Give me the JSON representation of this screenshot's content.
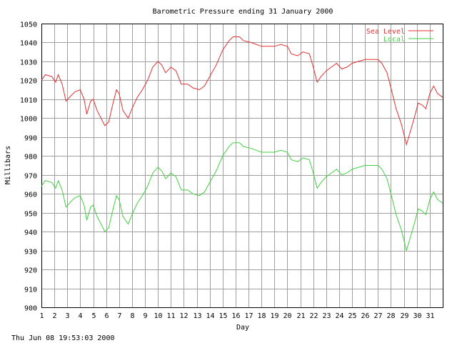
{
  "chart_data": {
    "type": "line",
    "title": "Barometric Pressure ending 31 January 2000",
    "x_label": "Day",
    "y_label": "Millibars",
    "footer": "Thu Jun 08 19:53:03 2000",
    "grid": true,
    "legend": "top-right",
    "xlim": [
      1,
      32
    ],
    "xticks": [
      1,
      2,
      3,
      4,
      5,
      6,
      7,
      8,
      9,
      10,
      11,
      12,
      13,
      14,
      15,
      16,
      17,
      18,
      19,
      20,
      21,
      22,
      23,
      24,
      25,
      26,
      27,
      28,
      29,
      30,
      31
    ],
    "ylim": [
      900,
      1050
    ],
    "yticks": [
      900,
      910,
      920,
      930,
      940,
      950,
      960,
      970,
      980,
      990,
      1000,
      1010,
      1020,
      1030,
      1040,
      1050
    ],
    "x": [
      1,
      1.3,
      1.8,
      2.1,
      2.3,
      2.6,
      2.9,
      3.3,
      3.6,
      4,
      4.3,
      4.5,
      4.8,
      5,
      5.3,
      5.6,
      5.9,
      6.2,
      6.5,
      6.8,
      7,
      7.3,
      7.7,
      8,
      8.4,
      8.8,
      9.2,
      9.6,
      10,
      10.3,
      10.6,
      11,
      11.4,
      11.8,
      12.3,
      12.7,
      13.2,
      13.6,
      14,
      14.5,
      15,
      15.5,
      15.8,
      16.3,
      16.6,
      17.2,
      17.6,
      18,
      18.5,
      19,
      19.5,
      20,
      20.3,
      20.8,
      21.2,
      21.7,
      22,
      22.3,
      22.6,
      23,
      23.4,
      23.8,
      24.2,
      24.6,
      25,
      25.5,
      26,
      26.5,
      27,
      27.3,
      27.7,
      28,
      28.4,
      28.8,
      29.2,
      29.5,
      29.8,
      30.1,
      30.4,
      30.7,
      31,
      31.3,
      31.6,
      32
    ],
    "series": [
      {
        "name": "Sea Level",
        "color": "#e03030",
        "values": [
          1020,
          1023,
          1022,
          1019,
          1023,
          1018,
          1009,
          1012,
          1014,
          1015,
          1010,
          1002,
          1009,
          1010,
          1004,
          1000,
          996,
          998,
          1007,
          1015,
          1013,
          1004,
          1000,
          1005,
          1011,
          1015,
          1020,
          1027,
          1030,
          1028,
          1024,
          1027,
          1025,
          1018,
          1018,
          1016,
          1015,
          1017,
          1022,
          1028,
          1036,
          1041,
          1043,
          1043,
          1041,
          1040,
          1039,
          1038,
          1038,
          1038,
          1039,
          1038,
          1034,
          1033,
          1035,
          1034,
          1027,
          1019,
          1022,
          1025,
          1027,
          1029,
          1026,
          1027,
          1029,
          1030,
          1031,
          1031,
          1031,
          1029,
          1024,
          1016,
          1005,
          997,
          986,
          993,
          1000,
          1008,
          1007,
          1005,
          1013,
          1017,
          1013,
          1011
        ]
      },
      {
        "name": "Local",
        "color": "#40d040",
        "values": [
          964,
          967,
          966,
          963,
          967,
          962,
          953,
          956,
          958,
          959,
          954,
          946,
          953,
          954,
          948,
          944,
          940,
          942,
          951,
          959,
          957,
          948,
          944,
          949,
          955,
          959,
          964,
          971,
          974,
          972,
          968,
          971,
          969,
          962,
          962,
          960,
          959,
          961,
          966,
          972,
          980,
          985,
          987,
          987,
          985,
          984,
          983,
          982,
          982,
          982,
          983,
          982,
          978,
          977,
          979,
          978,
          971,
          963,
          966,
          969,
          971,
          973,
          970,
          971,
          973,
          974,
          975,
          975,
          975,
          973,
          968,
          960,
          949,
          941,
          930,
          937,
          944,
          952,
          951,
          949,
          957,
          961,
          957,
          955
        ]
      }
    ]
  }
}
